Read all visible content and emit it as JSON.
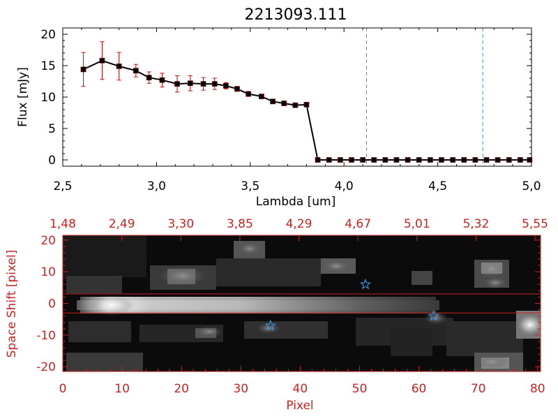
{
  "chart_data": [
    {
      "type": "line",
      "title": "2213093.111",
      "xlabel": "Lambda [um]",
      "ylabel": "Flux [mJy]",
      "xlim": [
        2.5,
        5.0
      ],
      "ylim": [
        -1,
        21
      ],
      "xticks": [
        "2.5",
        "3.0",
        "3.5",
        "4.0",
        "4.5",
        "5.0"
      ],
      "yticks": [
        "0",
        "5",
        "10",
        "15",
        "20"
      ],
      "x": [
        2.61,
        2.71,
        2.8,
        2.89,
        2.96,
        3.03,
        3.11,
        3.18,
        3.25,
        3.31,
        3.37,
        3.43,
        3.49,
        3.56,
        3.62,
        3.68,
        3.74,
        3.8,
        3.86,
        3.92,
        3.98,
        4.04,
        4.1,
        4.16,
        4.22,
        4.28,
        4.34,
        4.4,
        4.46,
        4.52,
        4.58,
        4.64,
        4.7,
        4.76,
        4.82,
        4.88,
        4.94,
        4.99
      ],
      "values": [
        14.4,
        15.8,
        14.9,
        14.2,
        13.1,
        12.7,
        12.1,
        12.2,
        12.1,
        12.1,
        11.8,
        11.3,
        10.5,
        10.1,
        9.3,
        9.0,
        8.7,
        8.8,
        0.0,
        0.0,
        0.0,
        0.0,
        0.0,
        0.0,
        0.0,
        0.0,
        0.0,
        0.0,
        0.0,
        0.0,
        0.0,
        0.0,
        0.0,
        0.0,
        0.0,
        0.0,
        0.0,
        0.0
      ],
      "errors": [
        2.7,
        3.0,
        2.2,
        1.0,
        0.9,
        1.1,
        1.3,
        1.2,
        1.0,
        0.9,
        0.5,
        0.4,
        0.4,
        0.3,
        0.3,
        0.3,
        0.3,
        0.3,
        0,
        0,
        0,
        0,
        0,
        0,
        0,
        0,
        0,
        0,
        0,
        0,
        0,
        0,
        0,
        0,
        0,
        0,
        0,
        0
      ],
      "vlines": [
        4.12,
        4.74
      ],
      "colors": {
        "line": "#000000",
        "marker": "#000000",
        "error": "#cc0000",
        "vline": "#3b8fdc"
      }
    },
    {
      "type": "heatmap",
      "xlabel": "Pixel",
      "ylabel": "Space Shift [pixel]",
      "xlim": [
        0,
        80.5
      ],
      "ylim": [
        -21.5,
        21.5
      ],
      "xticks": [
        "0",
        "10",
        "20",
        "30",
        "40",
        "50",
        "60",
        "70",
        "80"
      ],
      "yticks": [
        "-20",
        "-10",
        "0",
        "10",
        "20"
      ],
      "top_axis_ticks": [
        "1.48",
        "2.49",
        "3.30",
        "3.85",
        "4.29",
        "4.67",
        "5.01",
        "5.32",
        "5.55"
      ],
      "hlines": [
        3,
        -3
      ],
      "stars": [
        {
          "x": 51,
          "y": 6
        },
        {
          "x": 35,
          "y": -7
        },
        {
          "x": 62.5,
          "y": -4
        }
      ],
      "colors": {
        "axis": "#cc2222",
        "hline": "#cc2222",
        "star": "#3b8fdc"
      }
    }
  ]
}
